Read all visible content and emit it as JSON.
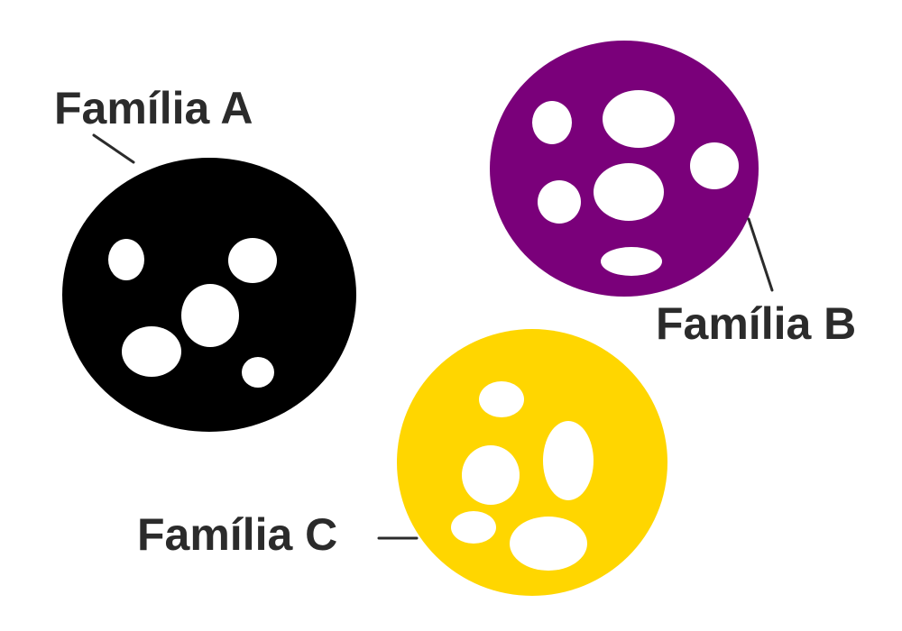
{
  "colors": {
    "background": "#ffffff",
    "label_text": "#2b2b2b",
    "leader_line": "#2b2b2b",
    "spots": "#ffffff"
  },
  "families": [
    {
      "id": "a",
      "label": "Família A",
      "color": "#000000",
      "spot_count": 5
    },
    {
      "id": "b",
      "label": "Família B",
      "color": "#7a007a",
      "spot_count": 6
    },
    {
      "id": "c",
      "label": "Família C",
      "color": "#ffd600",
      "spot_count": 5
    }
  ]
}
